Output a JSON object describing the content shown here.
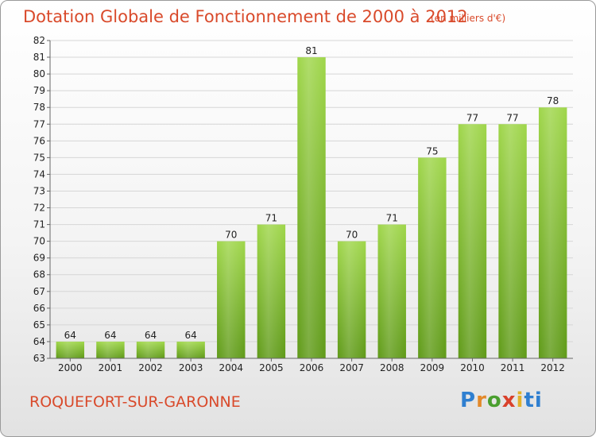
{
  "chart_data": {
    "type": "bar",
    "title": "Dotation Globale de Fonctionnement de 2000 à 2012",
    "subtitle": "(en milliers d'€)",
    "categories": [
      "2000",
      "2001",
      "2002",
      "2003",
      "2004",
      "2005",
      "2006",
      "2007",
      "2008",
      "2009",
      "2010",
      "2011",
      "2012"
    ],
    "values": [
      64,
      64,
      64,
      64,
      70,
      71,
      81,
      70,
      71,
      75,
      77,
      77,
      78
    ],
    "ylim": [
      63,
      82
    ],
    "yticks": [
      63,
      64,
      65,
      66,
      67,
      68,
      69,
      70,
      71,
      72,
      73,
      74,
      75,
      76,
      77,
      78,
      79,
      80,
      81,
      82
    ],
    "grid": true,
    "bar_color": "#7fbf2f"
  },
  "commune_name": "ROQUEFORT-SUR-GARONNE",
  "logo": {
    "letters": [
      "P",
      "r",
      "o",
      "x",
      "i",
      "ti"
    ]
  }
}
